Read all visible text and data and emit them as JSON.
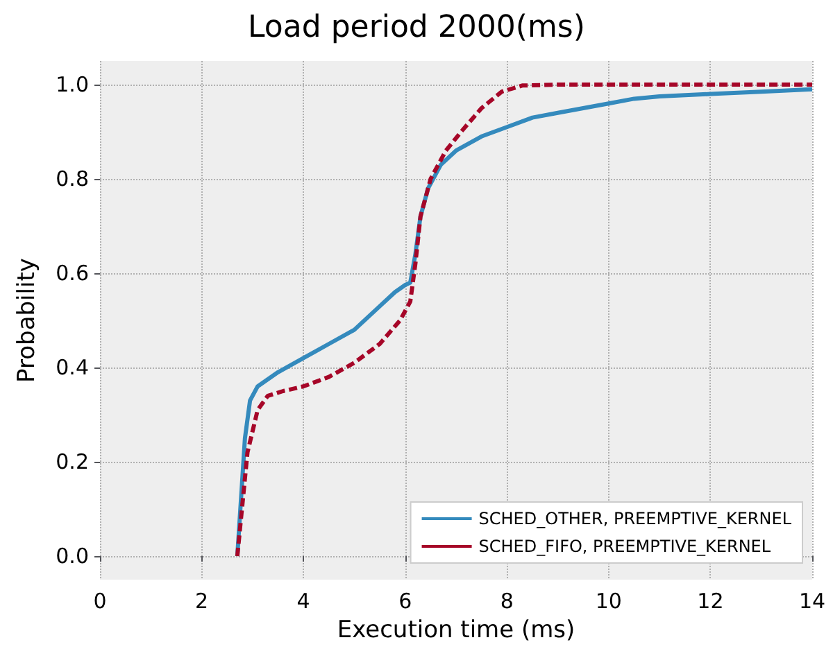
{
  "chart_data": {
    "type": "line",
    "title": "Load period 2000(ms)",
    "xlabel": "Execution time (ms)",
    "ylabel": "Probability",
    "xlim": [
      0,
      14
    ],
    "xticks": [
      0,
      2,
      4,
      6,
      8,
      10,
      12,
      14
    ],
    "ylim": [
      -0.05,
      1.05
    ],
    "yticks": [
      {
        "value": 0,
        "label": "0.0"
      },
      0.2,
      0.4,
      0.6,
      0.8,
      {
        "value": 1,
        "label": "1.0"
      }
    ],
    "grid": true,
    "legend": "bottom right",
    "marker": "none",
    "series": [
      {
        "name": "SCHED_OTHER, PREEMPTIVE_KERNEL",
        "color": "#348abd",
        "line_style": "solid",
        "x": [
          2.7,
          2.85,
          2.95,
          3.1,
          3.5,
          4,
          4.5,
          5,
          5.5,
          5.8,
          6.0,
          6.1,
          6.2,
          6.3,
          6.45,
          6.7,
          7,
          7.5,
          8,
          8.5,
          9,
          9.5,
          10,
          10.5,
          11,
          12,
          13,
          14
        ],
        "values": [
          0,
          0.25,
          0.33,
          0.36,
          0.39,
          0.42,
          0.45,
          0.48,
          0.53,
          0.56,
          0.575,
          0.58,
          0.64,
          0.72,
          0.78,
          0.83,
          0.86,
          0.89,
          0.91,
          0.93,
          0.94,
          0.95,
          0.96,
          0.97,
          0.975,
          0.98,
          0.985,
          0.99
        ]
      },
      {
        "name": "SCHED_FIFO, PREEMPTIVE_KERNEL",
        "color": "#a60628",
        "line_style": "dashed",
        "x": [
          2.7,
          2.9,
          3.1,
          3.3,
          3.6,
          4,
          4.5,
          5,
          5.5,
          5.9,
          6.1,
          6.2,
          6.3,
          6.5,
          6.8,
          7.1,
          7.5,
          7.9,
          8.3,
          9,
          14
        ],
        "values": [
          0,
          0.22,
          0.31,
          0.34,
          0.35,
          0.36,
          0.38,
          0.41,
          0.45,
          0.5,
          0.54,
          0.62,
          0.72,
          0.8,
          0.86,
          0.9,
          0.95,
          0.985,
          0.998,
          1.0,
          1.0
        ]
      }
    ]
  }
}
